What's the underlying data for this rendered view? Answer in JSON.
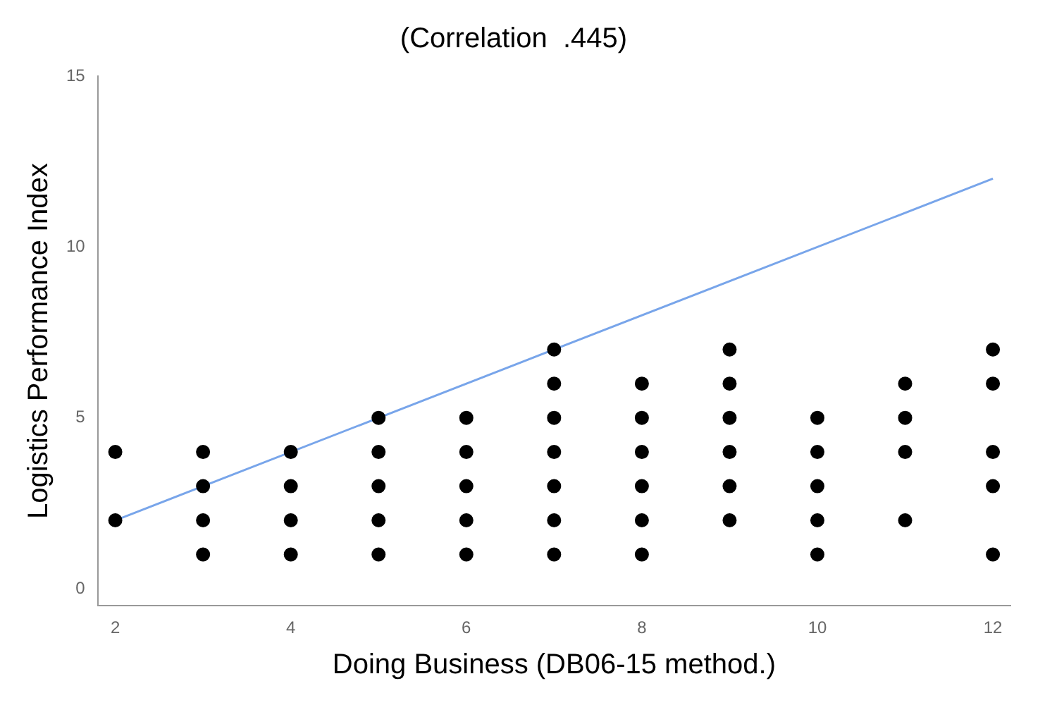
{
  "chart_data": {
    "type": "scatter",
    "title": "(Correlation  .445)",
    "xlabel": "Doing Business (DB06-15 method.)",
    "ylabel": "Logistics Performance Index",
    "xlim": [
      1.8,
      12.2
    ],
    "ylim": [
      -0.5,
      15
    ],
    "xticks": [
      2,
      4,
      6,
      8,
      10,
      12
    ],
    "yticks": [
      0,
      5,
      10,
      15
    ],
    "grid": false,
    "legend": false,
    "marker": "circle",
    "series": [
      {
        "type": "scatter",
        "color": "#000000",
        "x": [
          2,
          2,
          3,
          3,
          3,
          3,
          4,
          4,
          4,
          4,
          5,
          5,
          5,
          5,
          5,
          6,
          6,
          6,
          6,
          6,
          7,
          7,
          7,
          7,
          7,
          7,
          7,
          8,
          8,
          8,
          8,
          8,
          8,
          9,
          9,
          9,
          9,
          9,
          9,
          10,
          10,
          10,
          10,
          10,
          11,
          11,
          11,
          11,
          12,
          12,
          12,
          12,
          12
        ],
        "values": [
          4,
          2,
          4,
          3,
          2,
          1,
          4,
          3,
          2,
          1,
          5,
          4,
          3,
          2,
          1,
          5,
          4,
          3,
          2,
          1,
          7,
          6,
          5,
          4,
          3,
          2,
          1,
          6,
          5,
          4,
          3,
          2,
          1,
          7,
          6,
          5,
          4,
          3,
          2,
          5,
          4,
          3,
          2,
          1,
          6,
          5,
          4,
          2,
          7,
          6,
          4,
          3,
          1
        ]
      },
      {
        "type": "line",
        "color": "#78a5ea",
        "x": [
          2,
          12
        ],
        "values": [
          2,
          12
        ],
        "marker": "none",
        "line_style": "solid"
      }
    ]
  }
}
